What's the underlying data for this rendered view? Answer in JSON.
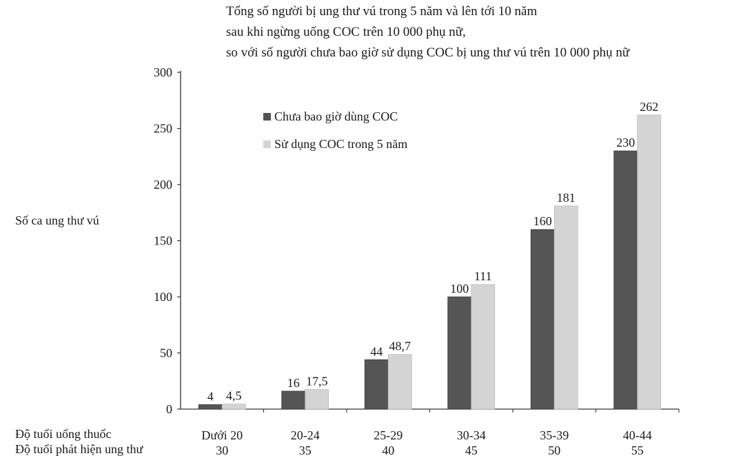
{
  "title": [
    "Tổng số người bị ung thư vú trong 5 năm và lên tới 10 năm",
    "sau khi ngừng uống COC trên 10 000 phụ nữ,",
    "so với số người chưa bao giờ sử dụng COC bị ung thư vú trên 10 000  phụ nữ"
  ],
  "ylabel": "Số ca ung thư vú",
  "row_labels": [
    "Độ tuổi uống thuốc",
    "Độ tuổi phát hiện ung thư"
  ],
  "colors": {
    "never": "#555555",
    "used": "#d4d4d4",
    "axis": "#333333"
  },
  "chart_data": {
    "type": "bar",
    "categories": [
      "Dưới 20",
      "20-24",
      "25-29",
      "30-34",
      "35-39",
      "40-44"
    ],
    "categories_secondary": [
      "30",
      "35",
      "40",
      "45",
      "50",
      "55"
    ],
    "series": [
      {
        "name": "Chưa bao giờ dùng COC",
        "values": [
          4,
          16,
          44,
          100,
          160,
          230
        ],
        "labels": [
          "4",
          "16",
          "44",
          "100",
          "160",
          "230"
        ]
      },
      {
        "name": "Sử dụng COC trong 5 năm",
        "values": [
          4.5,
          17.5,
          48.7,
          111,
          181,
          262
        ],
        "labels": [
          "4,5",
          "17,5",
          "48,7",
          "111",
          "181",
          "262"
        ]
      }
    ],
    "ylim": [
      0,
      300
    ],
    "yticks": [
      0,
      50,
      100,
      150,
      200,
      250,
      300
    ],
    "grid": false,
    "legend": "top-left"
  }
}
